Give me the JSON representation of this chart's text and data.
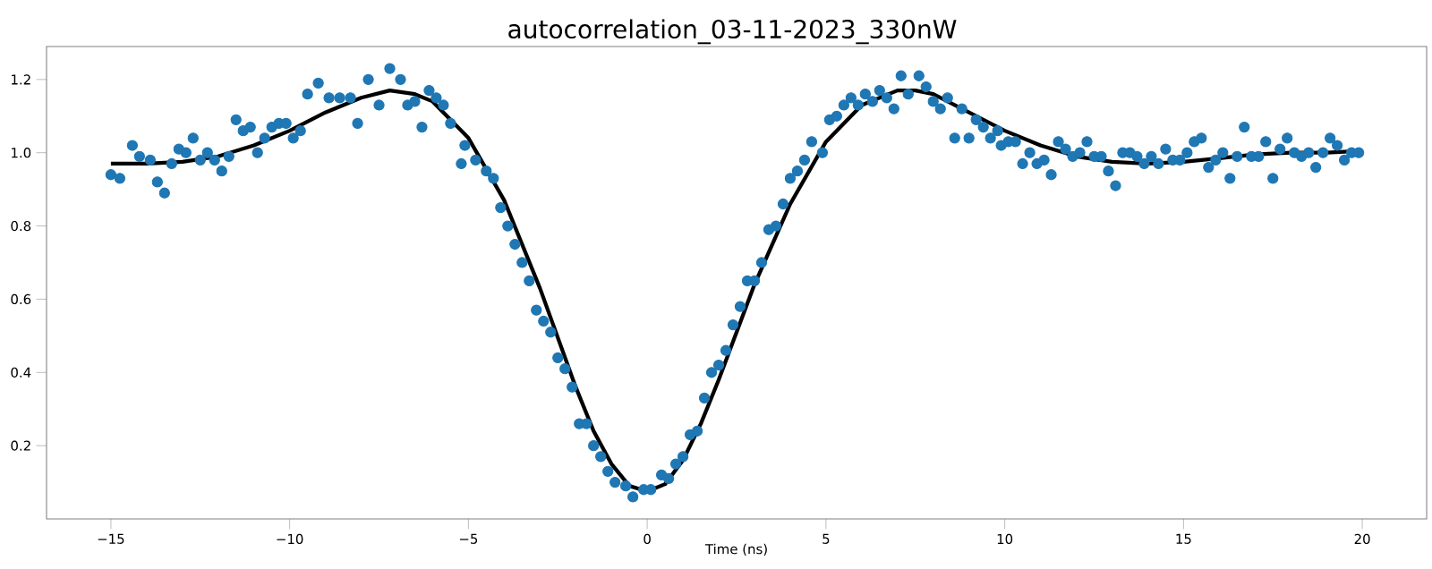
{
  "chart_data": {
    "type": "scatter",
    "title": "autocorrelation_03-11-2023_330nW",
    "xlabel": "Time (ns)",
    "xlim": [
      -16.8,
      21.8
    ],
    "ylim": [
      0,
      1.29
    ],
    "xticks": [
      {
        "value": -15,
        "label": "−15"
      },
      {
        "value": -10,
        "label": "−10"
      },
      {
        "value": -5,
        "label": "−5"
      },
      0,
      5,
      10,
      15,
      20
    ],
    "yticks": [
      0.2,
      0.4,
      0.6,
      0.8,
      {
        "value": 1.0,
        "label": "1.0"
      },
      1.2
    ],
    "series": [
      {
        "marker": "circle",
        "color": "#1f77b4",
        "x": [
          -15.0,
          -14.75,
          -14.4,
          -14.2,
          -13.9,
          -13.7,
          -13.5,
          -13.3,
          -13.1,
          -12.9,
          -12.7,
          -12.5,
          -12.3,
          -12.1,
          -11.9,
          -11.7,
          -11.5,
          -11.3,
          -11.1,
          -10.9,
          -10.7,
          -10.5,
          -10.3,
          -10.1,
          -9.9,
          -9.7,
          -9.5,
          -9.2,
          -8.9,
          -8.6,
          -8.3,
          -8.1,
          -7.8,
          -7.5,
          -7.2,
          -6.9,
          -6.7,
          -6.5,
          -6.3,
          -6.1,
          -5.9,
          -5.7,
          -5.5,
          -5.2,
          -5.1,
          -4.8,
          -4.5,
          -4.3,
          -4.1,
          -3.9,
          -3.7,
          -3.5,
          -3.3,
          -3.1,
          -2.9,
          -2.7,
          -2.5,
          -2.3,
          -2.1,
          -1.9,
          -1.7,
          -1.5,
          -1.3,
          -1.1,
          -0.9,
          -0.6,
          -0.4,
          -0.1,
          0.1,
          0.4,
          0.6,
          0.8,
          1.0,
          1.2,
          1.4,
          1.6,
          1.8,
          2.0,
          2.2,
          2.4,
          2.6,
          2.8,
          3.0,
          3.2,
          3.4,
          3.6,
          3.8,
          4.0,
          4.2,
          4.4,
          4.6,
          4.9,
          5.1,
          5.3,
          5.5,
          5.7,
          5.9,
          6.1,
          6.3,
          6.5,
          6.7,
          6.9,
          7.1,
          7.3,
          7.6,
          7.8,
          8.0,
          8.2,
          8.4,
          8.6,
          8.8,
          9.0,
          9.2,
          9.4,
          9.6,
          9.8,
          9.9,
          10.1,
          10.3,
          10.5,
          10.7,
          10.9,
          11.1,
          11.3,
          11.5,
          11.7,
          11.9,
          12.1,
          12.3,
          12.5,
          12.7,
          12.9,
          13.1,
          13.3,
          13.5,
          13.7,
          13.9,
          14.1,
          14.3,
          14.5,
          14.7,
          14.9,
          15.1,
          15.3,
          15.5,
          15.7,
          15.9,
          16.1,
          16.3,
          16.5,
          16.7,
          16.9,
          17.1,
          17.3,
          17.5,
          17.7,
          17.9,
          18.1,
          18.3,
          18.5,
          18.7,
          18.9,
          19.1,
          19.3,
          19.5,
          19.7,
          19.9
        ],
        "values": [
          0.94,
          0.93,
          1.02,
          0.99,
          0.98,
          0.92,
          0.89,
          0.97,
          1.01,
          1.0,
          1.04,
          0.98,
          1.0,
          0.98,
          0.95,
          0.99,
          1.09,
          1.06,
          1.07,
          1.0,
          1.04,
          1.07,
          1.08,
          1.08,
          1.04,
          1.06,
          1.16,
          1.19,
          1.15,
          1.15,
          1.15,
          1.08,
          1.2,
          1.13,
          1.23,
          1.2,
          1.13,
          1.14,
          1.07,
          1.17,
          1.15,
          1.13,
          1.08,
          0.97,
          1.02,
          0.98,
          0.95,
          0.93,
          0.85,
          0.8,
          0.75,
          0.7,
          0.65,
          0.57,
          0.54,
          0.51,
          0.44,
          0.41,
          0.36,
          0.26,
          0.26,
          0.2,
          0.17,
          0.13,
          0.1,
          0.09,
          0.06,
          0.08,
          0.08,
          0.12,
          0.11,
          0.15,
          0.17,
          0.23,
          0.24,
          0.33,
          0.4,
          0.42,
          0.46,
          0.53,
          0.58,
          0.65,
          0.65,
          0.7,
          0.79,
          0.8,
          0.86,
          0.93,
          0.95,
          0.98,
          1.03,
          1.0,
          1.09,
          1.1,
          1.13,
          1.15,
          1.13,
          1.16,
          1.14,
          1.17,
          1.15,
          1.12,
          1.21,
          1.16,
          1.21,
          1.18,
          1.14,
          1.12,
          1.15,
          1.04,
          1.12,
          1.04,
          1.09,
          1.07,
          1.04,
          1.06,
          1.02,
          1.03,
          1.03,
          0.97,
          1.0,
          0.97,
          0.98,
          0.94,
          1.03,
          1.01,
          0.99,
          1.0,
          1.03,
          0.99,
          0.99,
          0.95,
          0.91,
          1.0,
          1.0,
          0.99,
          0.97,
          0.99,
          0.97,
          1.01,
          0.98,
          0.98,
          1.0,
          1.03,
          1.04,
          0.96,
          0.98,
          1.0,
          0.93,
          0.99,
          1.07,
          0.99,
          0.99,
          1.03,
          0.93,
          1.01,
          1.04,
          1.0,
          0.99,
          1.0,
          0.96,
          1.0,
          1.04,
          1.02,
          0.98,
          1.0,
          1.0
        ]
      },
      {
        "type": "line",
        "marker": "none",
        "line_style": "solid",
        "color": "#000000",
        "x": [
          -15,
          -14,
          -13,
          -12,
          -11,
          -10,
          -9,
          -8,
          -7.2,
          -6.5,
          -6,
          -5,
          -4,
          -3,
          -2,
          -1.5,
          -1,
          -0.5,
          0,
          0.5,
          1,
          1.5,
          2,
          3,
          4,
          5,
          6,
          7,
          7.5,
          8,
          9,
          10,
          11,
          12,
          13,
          14,
          15,
          16,
          17,
          18,
          19,
          20
        ],
        "values": [
          0.97,
          0.97,
          0.975,
          0.99,
          1.02,
          1.06,
          1.11,
          1.15,
          1.17,
          1.16,
          1.14,
          1.04,
          0.87,
          0.63,
          0.36,
          0.24,
          0.15,
          0.09,
          0.075,
          0.095,
          0.16,
          0.26,
          0.38,
          0.64,
          0.86,
          1.03,
          1.13,
          1.17,
          1.17,
          1.16,
          1.11,
          1.06,
          1.02,
          0.99,
          0.975,
          0.97,
          0.975,
          0.985,
          0.995,
          1.0,
          1.0,
          1.005
        ]
      }
    ]
  }
}
